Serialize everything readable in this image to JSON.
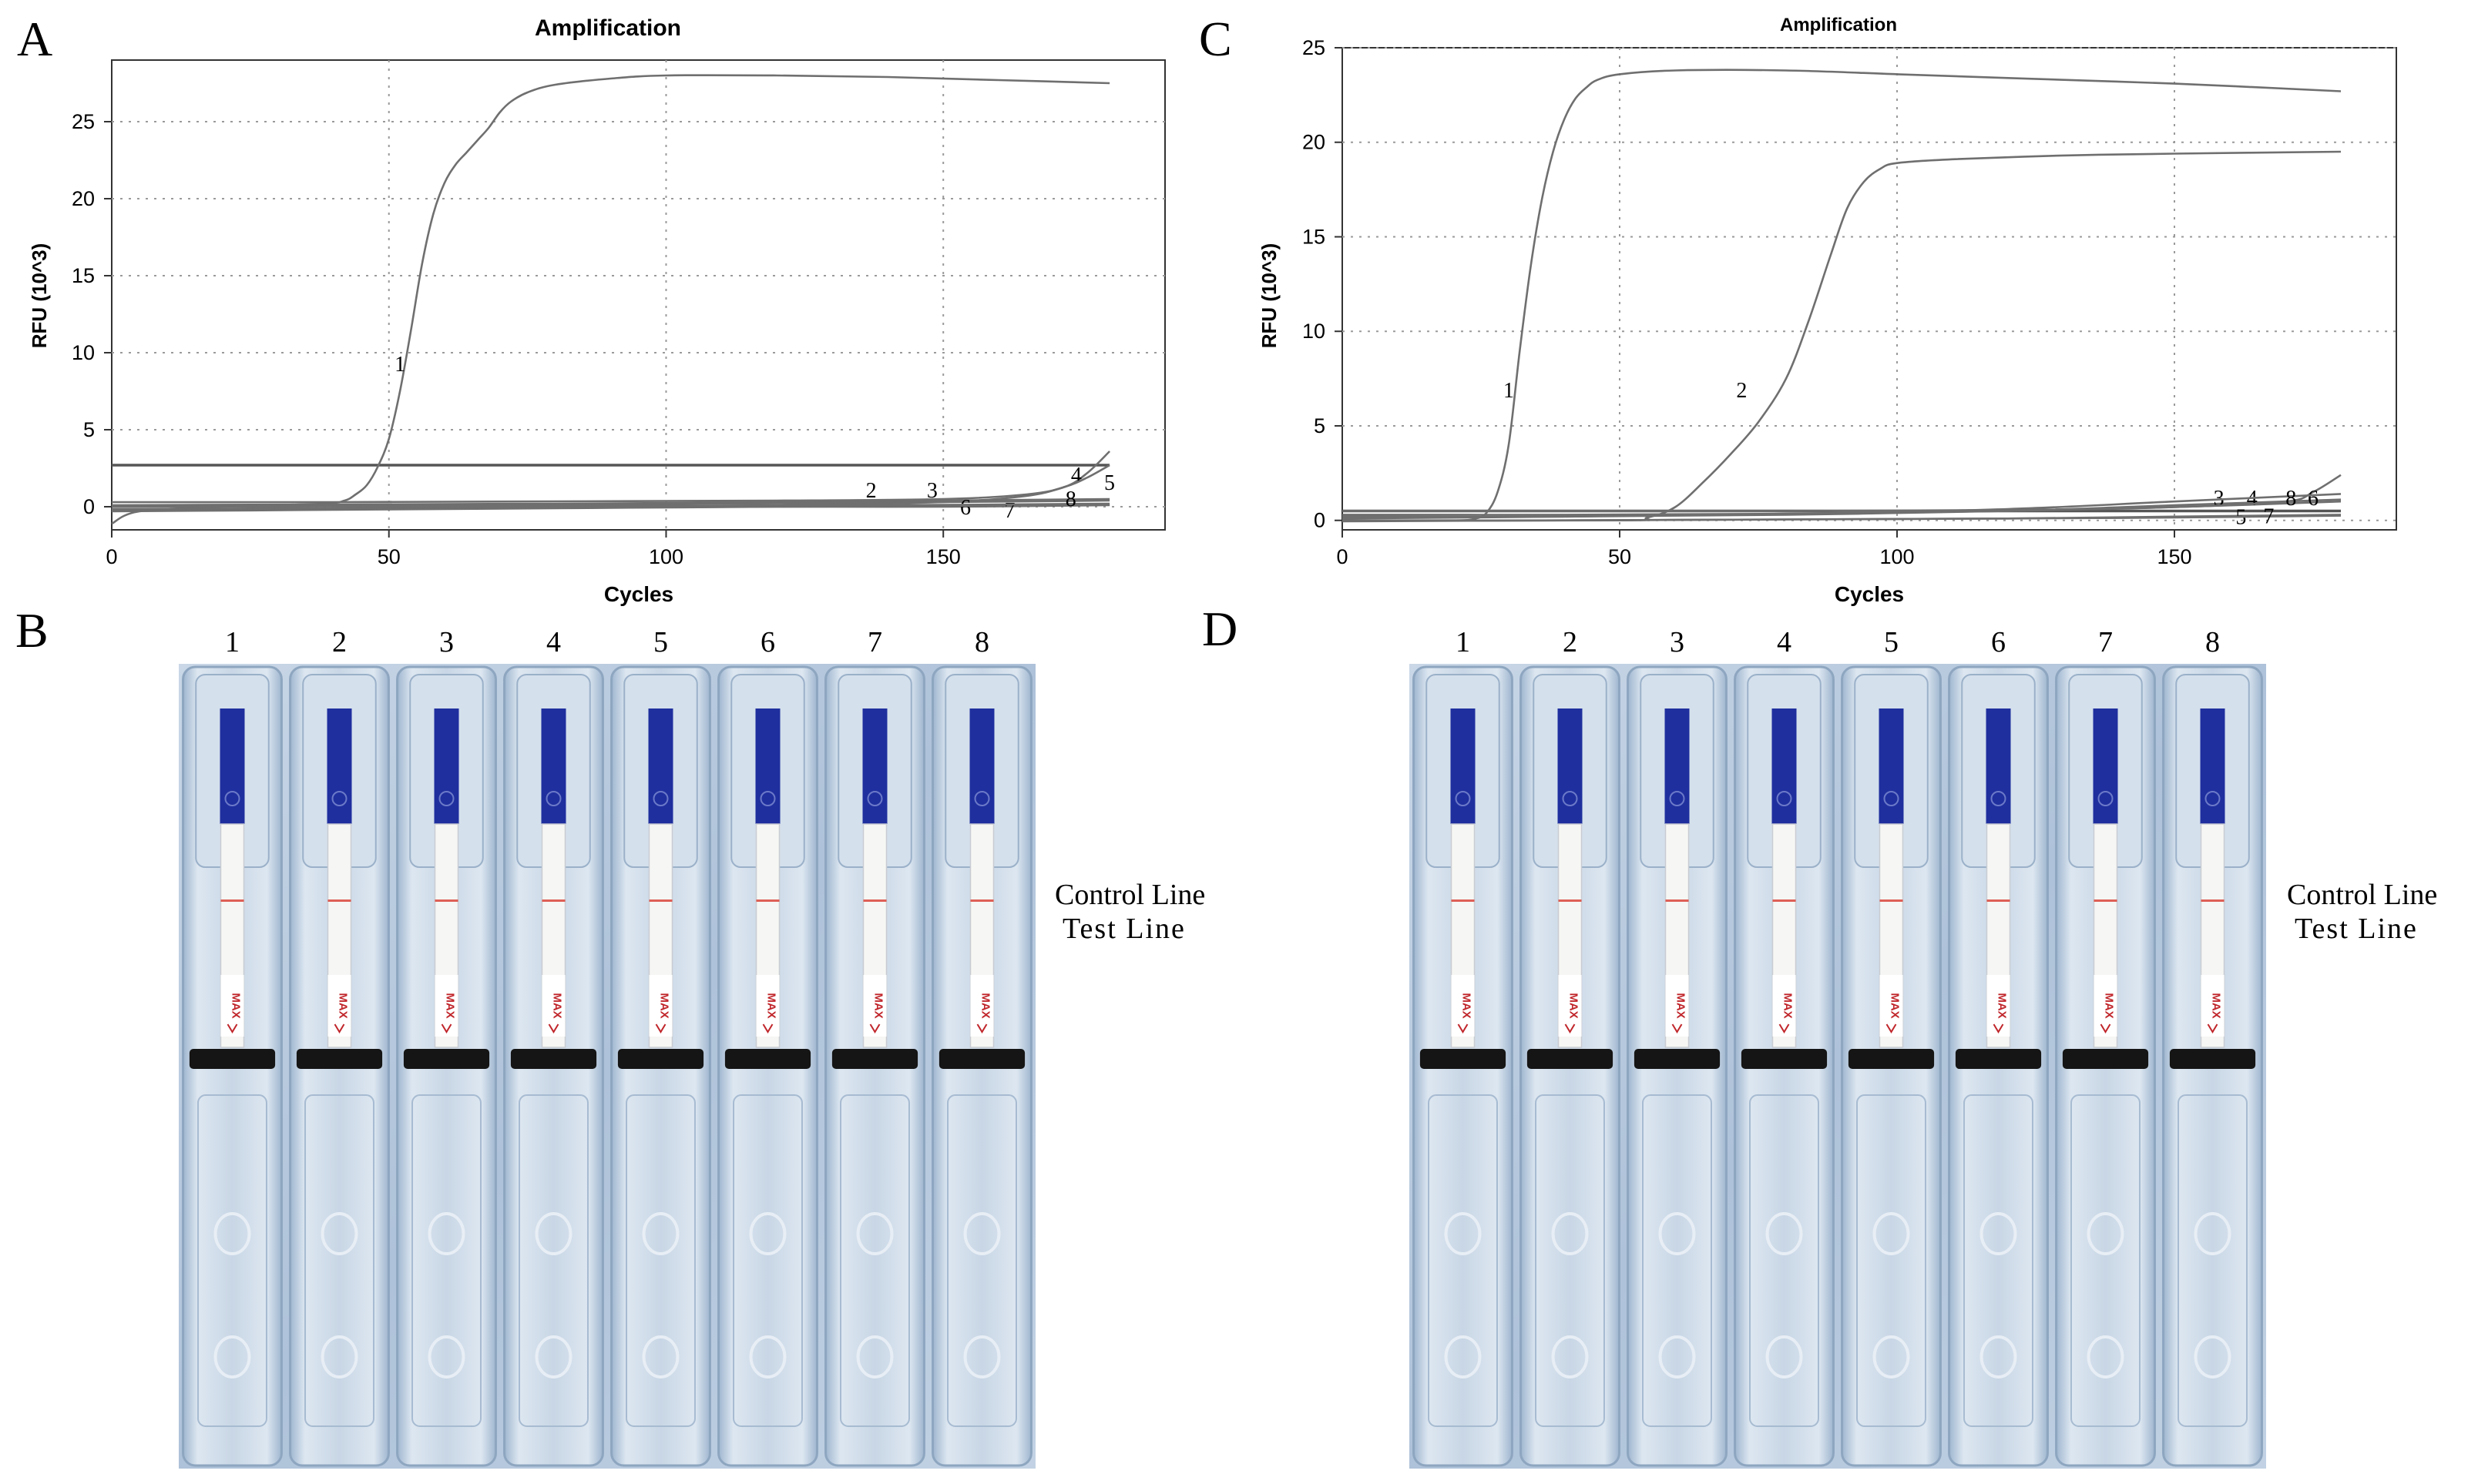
{
  "panels": {
    "A": {
      "letter": "A"
    },
    "B": {
      "letter": "B"
    },
    "C": {
      "letter": "C"
    },
    "D": {
      "letter": "D"
    }
  },
  "chart_data": [
    {
      "panel": "A",
      "type": "line",
      "title": "Amplification",
      "xlabel": "Cycles",
      "ylabel": "RFU (10^3)",
      "xlim": [
        0,
        190
      ],
      "ylim": [
        -1.5,
        29
      ],
      "xticks": [
        0,
        50,
        100,
        150
      ],
      "yticks": [
        0,
        5,
        10,
        15,
        20,
        25
      ],
      "grid": true,
      "threshold": 2.7,
      "series": [
        {
          "name": "1",
          "label_at": [
            52,
            8.8
          ],
          "x": [
            0,
            5,
            20,
            38,
            42,
            44,
            46,
            48,
            50,
            52,
            54,
            56,
            58,
            60,
            62,
            64,
            66,
            68,
            70,
            72,
            75,
            80,
            90,
            100,
            120,
            140,
            160,
            180
          ],
          "y": [
            -1.1,
            -0.3,
            0,
            0.2,
            0.4,
            0.8,
            1.4,
            2.6,
            4.4,
            7.5,
            11.5,
            15.8,
            19,
            21,
            22.2,
            23,
            23.8,
            24.6,
            25.6,
            26.3,
            26.9,
            27.4,
            27.8,
            28,
            28,
            27.9,
            27.7,
            27.5
          ]
        },
        {
          "name": "2",
          "label_at": [
            137,
            0.6
          ],
          "x": [
            0,
            40,
            80,
            120,
            150,
            180
          ],
          "y": [
            0.1,
            0.15,
            0.2,
            0.3,
            0.4,
            0.5
          ]
        },
        {
          "name": "3",
          "label_at": [
            148,
            0.6
          ],
          "x": [
            0,
            40,
            80,
            120,
            150,
            180
          ],
          "y": [
            0,
            0.08,
            0.15,
            0.22,
            0.3,
            0.4
          ]
        },
        {
          "name": "4",
          "label_at": [
            174,
            1.6
          ],
          "x": [
            0,
            40,
            80,
            120,
            150,
            165,
            172,
            176,
            180
          ],
          "y": [
            0.3,
            0.3,
            0.35,
            0.4,
            0.5,
            0.8,
            1.3,
            2.2,
            3.6
          ]
        },
        {
          "name": "5",
          "label_at": [
            180,
            1.1
          ],
          "x": [
            0,
            40,
            80,
            120,
            150,
            165,
            172,
            176,
            180
          ],
          "y": [
            -0.2,
            -0.1,
            0,
            0.1,
            0.3,
            0.7,
            1.3,
            1.9,
            2.7
          ]
        },
        {
          "name": "6",
          "label_at": [
            154,
            -0.5
          ],
          "x": [
            0,
            40,
            80,
            120,
            150,
            180
          ],
          "y": [
            -0.3,
            -0.2,
            -0.1,
            0,
            0,
            0.1
          ]
        },
        {
          "name": "7",
          "label_at": [
            162,
            -0.7
          ],
          "x": [
            0,
            40,
            80,
            120,
            150,
            180
          ],
          "y": [
            -0.15,
            -0.1,
            -0.05,
            0,
            0.05,
            0.12
          ]
        },
        {
          "name": "8",
          "label_at": [
            173,
            0.05
          ],
          "x": [
            0,
            40,
            80,
            120,
            150,
            180
          ],
          "y": [
            0,
            0.02,
            0.05,
            0.08,
            0.12,
            0.2
          ]
        }
      ]
    },
    {
      "panel": "C",
      "type": "line",
      "title": "Amplification",
      "xlabel": "Cycles",
      "ylabel": "RFU (10^3)",
      "xlim": [
        0,
        190
      ],
      "ylim": [
        -0.5,
        25
      ],
      "xticks": [
        0,
        50,
        100,
        150
      ],
      "yticks": [
        0,
        5,
        10,
        15,
        20,
        25
      ],
      "grid": true,
      "threshold": 0.5,
      "series": [
        {
          "name": "1",
          "label_at": [
            30,
            6.5
          ],
          "x": [
            0,
            20,
            24,
            26,
            28,
            30,
            32,
            34,
            36,
            38,
            40,
            42,
            44,
            46,
            50,
            60,
            80,
            100,
            120,
            150,
            180
          ],
          "y": [
            0,
            0,
            0.1,
            0.4,
            1.5,
            4,
            9,
            13.5,
            17,
            19.5,
            21.2,
            22.3,
            22.9,
            23.3,
            23.6,
            23.8,
            23.8,
            23.6,
            23.4,
            23.1,
            22.7
          ]
        },
        {
          "name": "2",
          "label_at": [
            72,
            6.5
          ],
          "x": [
            0,
            50,
            55,
            60,
            65,
            70,
            75,
            80,
            84,
            88,
            91,
            94,
            97,
            100,
            110,
            130,
            150,
            180
          ],
          "y": [
            0,
            0,
            0.15,
            0.7,
            2,
            3.5,
            5.2,
            7.5,
            10.5,
            14,
            16.5,
            17.9,
            18.6,
            18.9,
            19.1,
            19.3,
            19.4,
            19.5
          ]
        },
        {
          "name": "3",
          "label_at": [
            158,
            0.8
          ],
          "x": [
            0,
            40,
            80,
            120,
            150,
            180
          ],
          "y": [
            0.2,
            0.2,
            0.3,
            0.5,
            0.8,
            1.1
          ]
        },
        {
          "name": "4",
          "label_at": [
            164,
            0.8
          ],
          "x": [
            0,
            40,
            80,
            120,
            150,
            180
          ],
          "y": [
            0.3,
            0.3,
            0.35,
            0.5,
            0.7,
            1
          ]
        },
        {
          "name": "5",
          "label_at": [
            162,
            -0.2
          ],
          "x": [
            0,
            40,
            80,
            120,
            150,
            180
          ],
          "y": [
            -0.05,
            0,
            0.05,
            0.1,
            0.2,
            0.3
          ]
        },
        {
          "name": "6",
          "label_at": [
            175,
            0.8
          ],
          "x": [
            0,
            40,
            80,
            120,
            150,
            170,
            175,
            180
          ],
          "y": [
            0.5,
            0.5,
            0.5,
            0.55,
            0.7,
            1,
            1.5,
            2.4
          ]
        },
        {
          "name": "7",
          "label_at": [
            167,
            -0.15
          ],
          "x": [
            0,
            40,
            80,
            120,
            150,
            180
          ],
          "y": [
            0,
            0,
            0.05,
            0.1,
            0.15,
            0.25
          ]
        },
        {
          "name": "8",
          "label_at": [
            171,
            0.8
          ],
          "x": [
            0,
            40,
            80,
            120,
            150,
            180
          ],
          "y": [
            0.1,
            0.2,
            0.35,
            0.6,
            1,
            1.4
          ]
        }
      ]
    }
  ],
  "strips": {
    "B": {
      "lane_numbers": [
        "1",
        "2",
        "3",
        "4",
        "5",
        "6",
        "7",
        "8"
      ],
      "label_brand": "MAX",
      "control_line_label": "Control Line",
      "test_line_label": "Test Line"
    },
    "D": {
      "lane_numbers": [
        "1",
        "2",
        "3",
        "4",
        "5",
        "6",
        "7",
        "8"
      ],
      "label_brand": "MAX",
      "control_line_label": "Control Line",
      "test_line_label": "Test Line"
    }
  },
  "colors": {
    "curve": "#6f6f6f",
    "threshold": "#555555",
    "grid": "#9a9a9a",
    "tray": "#b5c8dd",
    "strip_pad": "#1f2f9e",
    "line_red": "#d9443a",
    "cap": "#151515"
  }
}
